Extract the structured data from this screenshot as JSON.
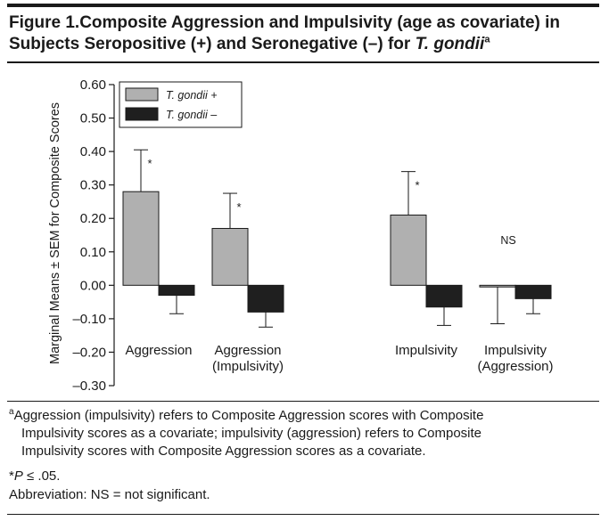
{
  "figure": {
    "title_prefix": "Figure 1.",
    "title_main": "Composite Aggression and Impulsivity (age as covariate) in Subjects Seropositive (+) and Seronegative (–) for ",
    "title_species": "T. gondii",
    "title_superscript": "a"
  },
  "chart_data": {
    "type": "bar",
    "ylabel": "Marginal Means ± SEM for Composite Scores",
    "ylim": [
      -0.3,
      0.6
    ],
    "yticks": [
      0.6,
      0.5,
      0.4,
      0.3,
      0.2,
      0.1,
      0.0,
      -0.1,
      -0.2,
      -0.3
    ],
    "ytick_labels": [
      "0.60",
      "0.50",
      "0.40",
      "0.30",
      "0.20",
      "0.10",
      "0.00",
      "–0.10",
      "–0.20",
      "–0.30"
    ],
    "categories": [
      {
        "line1": "Aggression",
        "line2": ""
      },
      {
        "line1": "Aggression",
        "line2": "(Impulsivity)"
      },
      {
        "line1": "Impulsivity",
        "line2": ""
      },
      {
        "line1": "Impulsivity",
        "line2": "(Aggression)"
      }
    ],
    "series": [
      {
        "name": "T. gondii +",
        "color": "#b0b0b0",
        "values": [
          0.28,
          0.17,
          0.21,
          -0.005
        ],
        "errors": [
          0.125,
          0.105,
          0.13,
          0.11
        ]
      },
      {
        "name": "T. gondii –",
        "color": "#1f1f1f",
        "values": [
          -0.03,
          -0.08,
          -0.065,
          -0.04
        ],
        "errors": [
          0.055,
          0.045,
          0.055,
          0.045
        ]
      }
    ],
    "annotations": [
      "*",
      "*",
      "*",
      "NS"
    ],
    "legend_position": "top-left",
    "grid": false
  },
  "footnotes": {
    "a_marker": "a",
    "a_line1": "Aggression (impulsivity) refers to Composite Aggression scores with Composite",
    "a_line2": "Impulsivity scores as a covariate; impulsivity (aggression) refers to Composite",
    "a_line3": "Impulsivity scores with Composite Aggression scores as a covariate.",
    "sig_marker": "*",
    "sig_p": "P",
    "sig_text": " ≤ .05.",
    "abbrev": "Abbreviation: NS = not significant."
  }
}
